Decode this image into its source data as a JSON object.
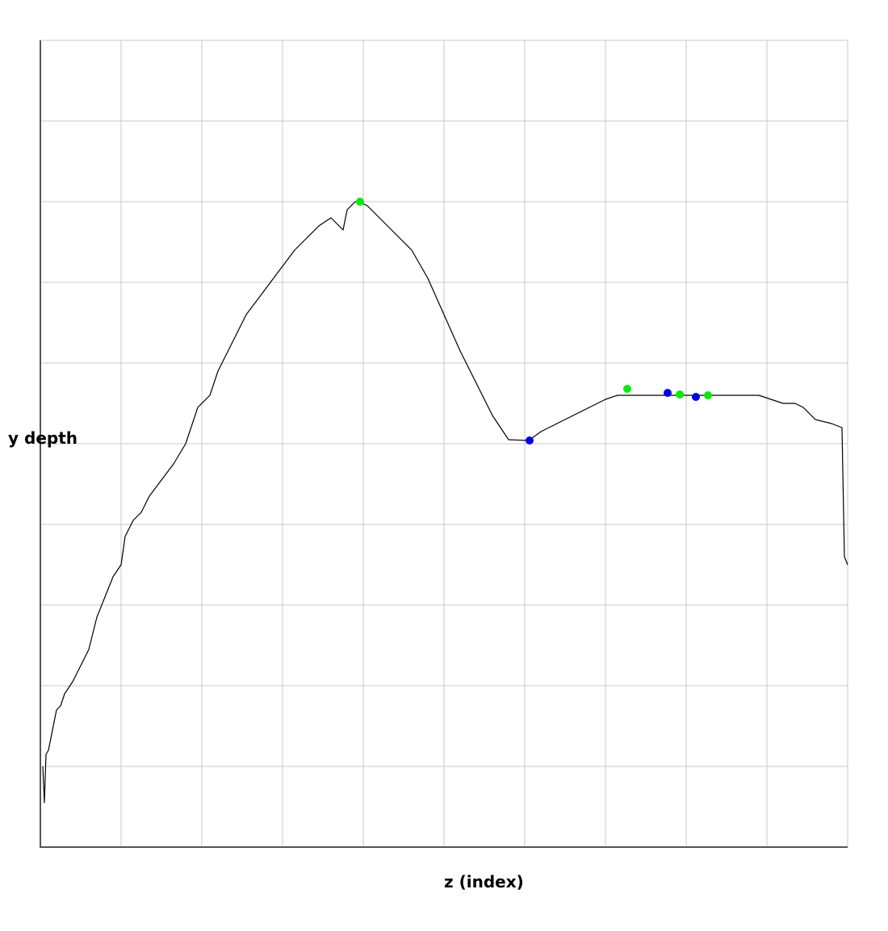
{
  "chart_data": {
    "type": "line",
    "title": "",
    "xlabel": "z (index)",
    "ylabel": "y depth",
    "xlim": [
      0,
      100
    ],
    "ylim": [
      0,
      100
    ],
    "grid": true,
    "grid_divisions": 10,
    "x_tick_labels_shown": false,
    "y_tick_labels_shown": false,
    "series": [
      {
        "line_color": "#000000",
        "points": [
          [
            0.3,
            10.0
          ],
          [
            0.5,
            5.5
          ],
          [
            0.7,
            11.5
          ],
          [
            1.0,
            12.0
          ],
          [
            1.5,
            14.5
          ],
          [
            2.0,
            17.0
          ],
          [
            2.5,
            17.5
          ],
          [
            3.0,
            19.0
          ],
          [
            4.0,
            20.5
          ],
          [
            5.0,
            22.5
          ],
          [
            6.0,
            24.5
          ],
          [
            7.0,
            28.5
          ],
          [
            8.0,
            31.0
          ],
          [
            9.0,
            33.5
          ],
          [
            10.0,
            35.0
          ],
          [
            10.5,
            38.5
          ],
          [
            11.5,
            40.5
          ],
          [
            12.5,
            41.5
          ],
          [
            13.5,
            43.5
          ],
          [
            15.0,
            45.5
          ],
          [
            16.5,
            47.5
          ],
          [
            18.0,
            50.0
          ],
          [
            19.5,
            54.5
          ],
          [
            21.0,
            56.0
          ],
          [
            22.0,
            59.0
          ],
          [
            23.5,
            62.0
          ],
          [
            24.5,
            64.0
          ],
          [
            25.5,
            66.0
          ],
          [
            27.0,
            68.0
          ],
          [
            28.5,
            70.0
          ],
          [
            30.0,
            72.0
          ],
          [
            31.5,
            74.0
          ],
          [
            33.0,
            75.5
          ],
          [
            34.5,
            77.0
          ],
          [
            36.0,
            78.0
          ],
          [
            37.5,
            76.5
          ],
          [
            38.0,
            79.0
          ],
          [
            39.0,
            80.0
          ],
          [
            39.5,
            80.0
          ],
          [
            40.5,
            79.5
          ],
          [
            42.0,
            78.0
          ],
          [
            44.0,
            76.0
          ],
          [
            46.0,
            74.0
          ],
          [
            48.0,
            70.5
          ],
          [
            50.0,
            66.0
          ],
          [
            52.0,
            61.5
          ],
          [
            54.0,
            57.5
          ],
          [
            56.0,
            53.5
          ],
          [
            58.0,
            50.5
          ],
          [
            60.5,
            50.4
          ],
          [
            62.0,
            51.5
          ],
          [
            64.0,
            52.5
          ],
          [
            66.0,
            53.5
          ],
          [
            68.0,
            54.5
          ],
          [
            70.0,
            55.5
          ],
          [
            71.5,
            56.0
          ],
          [
            73.0,
            56.0
          ],
          [
            75.0,
            56.0
          ],
          [
            77.0,
            56.0
          ],
          [
            79.0,
            56.0
          ],
          [
            81.0,
            56.0
          ],
          [
            83.0,
            56.0
          ],
          [
            85.0,
            56.0
          ],
          [
            87.0,
            56.0
          ],
          [
            89.0,
            56.0
          ],
          [
            90.5,
            55.5
          ],
          [
            92.0,
            55.0
          ],
          [
            93.5,
            55.0
          ],
          [
            94.5,
            54.5
          ],
          [
            96.0,
            53.0
          ],
          [
            98.0,
            52.5
          ],
          [
            99.3,
            52.0
          ],
          [
            99.6,
            36.0
          ],
          [
            100.0,
            35.0
          ]
        ]
      }
    ],
    "markers": [
      {
        "color": "#00ee00",
        "points": [
          [
            39.6,
            80.0
          ],
          [
            72.7,
            56.8
          ],
          [
            79.2,
            56.1
          ],
          [
            82.7,
            56.0
          ]
        ]
      },
      {
        "color": "#0000ee",
        "points": [
          [
            60.6,
            50.4
          ],
          [
            77.7,
            56.3
          ],
          [
            81.2,
            55.8
          ]
        ]
      }
    ]
  }
}
